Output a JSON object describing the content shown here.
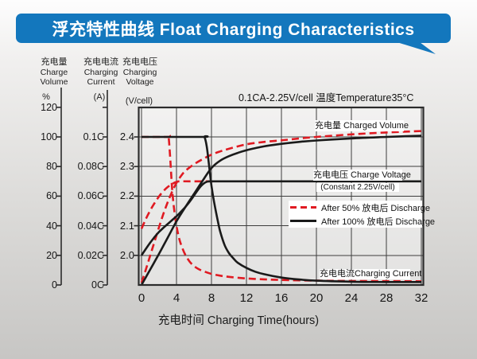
{
  "banner": {
    "title": "浮充特性曲线 Float Charging Characteristics",
    "bg_color": "#1377bd",
    "text_color": "#ffffff"
  },
  "condition_note": "0.1CA-2.25V/cell  温度Temperature35°C",
  "axes": {
    "volume": {
      "title_cn": "充电量",
      "title_en1": "Charge",
      "title_en2": "Volume",
      "unit": "%",
      "ticks": [
        "120",
        "100",
        "80",
        "60",
        "40",
        "20",
        "0"
      ]
    },
    "current": {
      "title_cn": "充电电流",
      "title_en1": "Charging",
      "title_en2": "Current",
      "unit": "(A)",
      "ticks": [
        "0.1C",
        "0.08C",
        "0.06C",
        "0.04C",
        "0.02C",
        "0C"
      ]
    },
    "voltage": {
      "title_cn": "充电电压",
      "title_en1": "Charging",
      "title_en2": "Voltage",
      "unit": "(V/cell)",
      "ticks": [
        "2.4",
        "2.3",
        "2.2",
        "2.1",
        "2.0"
      ]
    },
    "x": {
      "title": "充电时间 Charging Time(hours)",
      "ticks": [
        "0",
        "4",
        "8",
        "12",
        "16",
        "20",
        "24",
        "28",
        "32"
      ]
    }
  },
  "annotations": {
    "charged_volume": "充电量 Charged Volume",
    "charge_voltage": "充电电压 Charge Voltage",
    "charge_voltage_sub": "(Constant 2.25V/cell)",
    "charging_current": "充电电流Charging Current"
  },
  "legend": [
    {
      "style": "dashed",
      "color": "#e01a22",
      "label": "After 50%  放电后 Discharge"
    },
    {
      "style": "solid",
      "color": "#1a1a1a",
      "label": "After 100%  放电后 Discharge"
    }
  ],
  "colors": {
    "red_series": "#e01a22",
    "black_series": "#1a1a1a",
    "grid": "#3d3d3d",
    "frame": "#2b2b2b"
  },
  "chart_data": {
    "type": "line",
    "title": "浮充特性曲线 Float Charging Characteristics",
    "condition": "0.1CA-2.25V/cell, 温度 Temperature 35°C",
    "xlabel": "充电时间 Charging Time(hours)",
    "x_range": [
      0,
      32
    ],
    "x_ticks": [
      0,
      4,
      8,
      12,
      16,
      20,
      24,
      28,
      32
    ],
    "grid": true,
    "legend_position": "middle-right",
    "axes": [
      {
        "id": "volume",
        "label": "充电量 Charge Volume (%)",
        "range": [
          0,
          120
        ],
        "ticks": [
          0,
          20,
          40,
          60,
          80,
          100,
          120
        ]
      },
      {
        "id": "current",
        "label": "充电电流 Charging Current (A)",
        "range": [
          0,
          0.12
        ],
        "ticks": [
          "0C",
          "0.02C",
          "0.04C",
          "0.06C",
          "0.08C",
          "0.1C"
        ]
      },
      {
        "id": "voltage",
        "label": "充电电压 Charging Voltage (V/cell)",
        "range": [
          1.9,
          2.45
        ],
        "ticks": [
          2.0,
          2.1,
          2.2,
          2.3,
          2.4
        ]
      }
    ],
    "series": [
      {
        "name": "Charging Current - After 50% Discharge",
        "axis": "current",
        "style": "dashed",
        "color": "#e01a22",
        "points": [
          [
            0,
            0.1
          ],
          [
            3.0,
            0.1
          ],
          [
            3.1,
            0.1
          ],
          [
            3.3,
            0.084
          ],
          [
            3.5,
            0.065
          ],
          [
            3.75,
            0.05
          ],
          [
            4,
            0.04
          ],
          [
            4.3,
            0.0315
          ],
          [
            4.6,
            0.026
          ],
          [
            5,
            0.0205
          ],
          [
            5.5,
            0.0158
          ],
          [
            6,
            0.0128
          ],
          [
            6.5,
            0.0108
          ],
          [
            7,
            0.0095
          ],
          [
            8,
            0.0075
          ],
          [
            9,
            0.0063
          ],
          [
            10,
            0.0055
          ],
          [
            12,
            0.0044
          ],
          [
            14,
            0.0038
          ],
          [
            16,
            0.0034
          ],
          [
            20,
            0.0029
          ],
          [
            24,
            0.0027
          ],
          [
            28,
            0.0026
          ],
          [
            32,
            0.0025
          ]
        ]
      },
      {
        "name": "Charging Voltage - After 50% Discharge",
        "axis": "voltage",
        "style": "dashed",
        "color": "#e01a22",
        "points": [
          [
            0,
            2.09
          ],
          [
            0.5,
            2.123
          ],
          [
            1,
            2.152
          ],
          [
            1.5,
            2.177
          ],
          [
            2,
            2.199
          ],
          [
            2.5,
            2.217
          ],
          [
            3,
            2.231
          ],
          [
            3.5,
            2.241
          ],
          [
            4,
            2.248
          ],
          [
            4.4,
            2.25
          ],
          [
            6,
            2.25
          ],
          [
            8.5,
            2.25
          ]
        ]
      },
      {
        "name": "Charged Volume - After 50% Discharge",
        "axis": "volume",
        "style": "dashed",
        "color": "#e01a22",
        "points": [
          [
            0,
            1.5
          ],
          [
            0.5,
            10.5
          ],
          [
            1,
            20
          ],
          [
            1.5,
            29.5
          ],
          [
            2,
            39
          ],
          [
            2.5,
            48
          ],
          [
            3,
            56
          ],
          [
            3.5,
            63
          ],
          [
            4,
            69
          ],
          [
            4.5,
            73.5
          ],
          [
            5,
            77
          ],
          [
            6,
            81.5
          ],
          [
            7,
            85
          ],
          [
            8,
            88
          ],
          [
            9,
            90.2
          ],
          [
            10,
            92
          ],
          [
            12,
            95
          ],
          [
            14,
            96.6
          ],
          [
            16,
            97.7
          ],
          [
            18,
            98.9
          ],
          [
            20,
            100
          ],
          [
            24,
            101.7
          ],
          [
            28,
            103
          ],
          [
            32,
            104
          ]
        ]
      },
      {
        "name": "Charging Current - After 100% Discharge",
        "axis": "current",
        "style": "solid",
        "color": "#1a1a1a",
        "points": [
          [
            0,
            0.1
          ],
          [
            7.0,
            0.1
          ],
          [
            7.2,
            0.1
          ],
          [
            7.45,
            0.094
          ],
          [
            7.7,
            0.082
          ],
          [
            8,
            0.067
          ],
          [
            8.3,
            0.056
          ],
          [
            8.7,
            0.044
          ],
          [
            9,
            0.036
          ],
          [
            9.5,
            0.027
          ],
          [
            10,
            0.0215
          ],
          [
            10.5,
            0.018
          ],
          [
            11,
            0.015
          ],
          [
            12,
            0.0115
          ],
          [
            13,
            0.009
          ],
          [
            14,
            0.0073
          ],
          [
            16,
            0.005
          ],
          [
            18,
            0.0037
          ],
          [
            20,
            0.0029
          ],
          [
            24,
            0.0022
          ],
          [
            28,
            0.002
          ],
          [
            32,
            0.002
          ]
        ]
      },
      {
        "name": "Charging Voltage - After 100% Discharge",
        "axis": "voltage",
        "style": "solid",
        "color": "#1a1a1a",
        "points": [
          [
            0,
            2.0
          ],
          [
            0.5,
            2.022
          ],
          [
            1,
            2.043
          ],
          [
            1.5,
            2.062
          ],
          [
            2,
            2.079
          ],
          [
            2.5,
            2.093
          ],
          [
            3,
            2.106
          ],
          [
            3.5,
            2.119
          ],
          [
            4,
            2.132
          ],
          [
            4.5,
            2.147
          ],
          [
            5,
            2.163
          ],
          [
            5.5,
            2.181
          ],
          [
            6,
            2.202
          ],
          [
            6.5,
            2.223
          ],
          [
            7,
            2.24
          ],
          [
            7.5,
            2.249
          ],
          [
            8,
            2.25
          ],
          [
            9,
            2.25
          ],
          [
            16,
            2.25
          ],
          [
            24,
            2.25
          ],
          [
            32,
            2.25
          ]
        ]
      },
      {
        "name": "Charged Volume - After 100% Discharge",
        "axis": "volume",
        "style": "solid",
        "color": "#1a1a1a",
        "points": [
          [
            0,
            0
          ],
          [
            1,
            10.5
          ],
          [
            2,
            21
          ],
          [
            3,
            32
          ],
          [
            4,
            43
          ],
          [
            5,
            52.5
          ],
          [
            6,
            61.5
          ],
          [
            7,
            70.5
          ],
          [
            8,
            79
          ],
          [
            9,
            84
          ],
          [
            10,
            87
          ],
          [
            11,
            89.2
          ],
          [
            12,
            91
          ],
          [
            14,
            93.6
          ],
          [
            16,
            95.3
          ],
          [
            18,
            96.6
          ],
          [
            20,
            97.6
          ],
          [
            24,
            99
          ],
          [
            28,
            100
          ],
          [
            32,
            100.8
          ]
        ]
      }
    ]
  }
}
